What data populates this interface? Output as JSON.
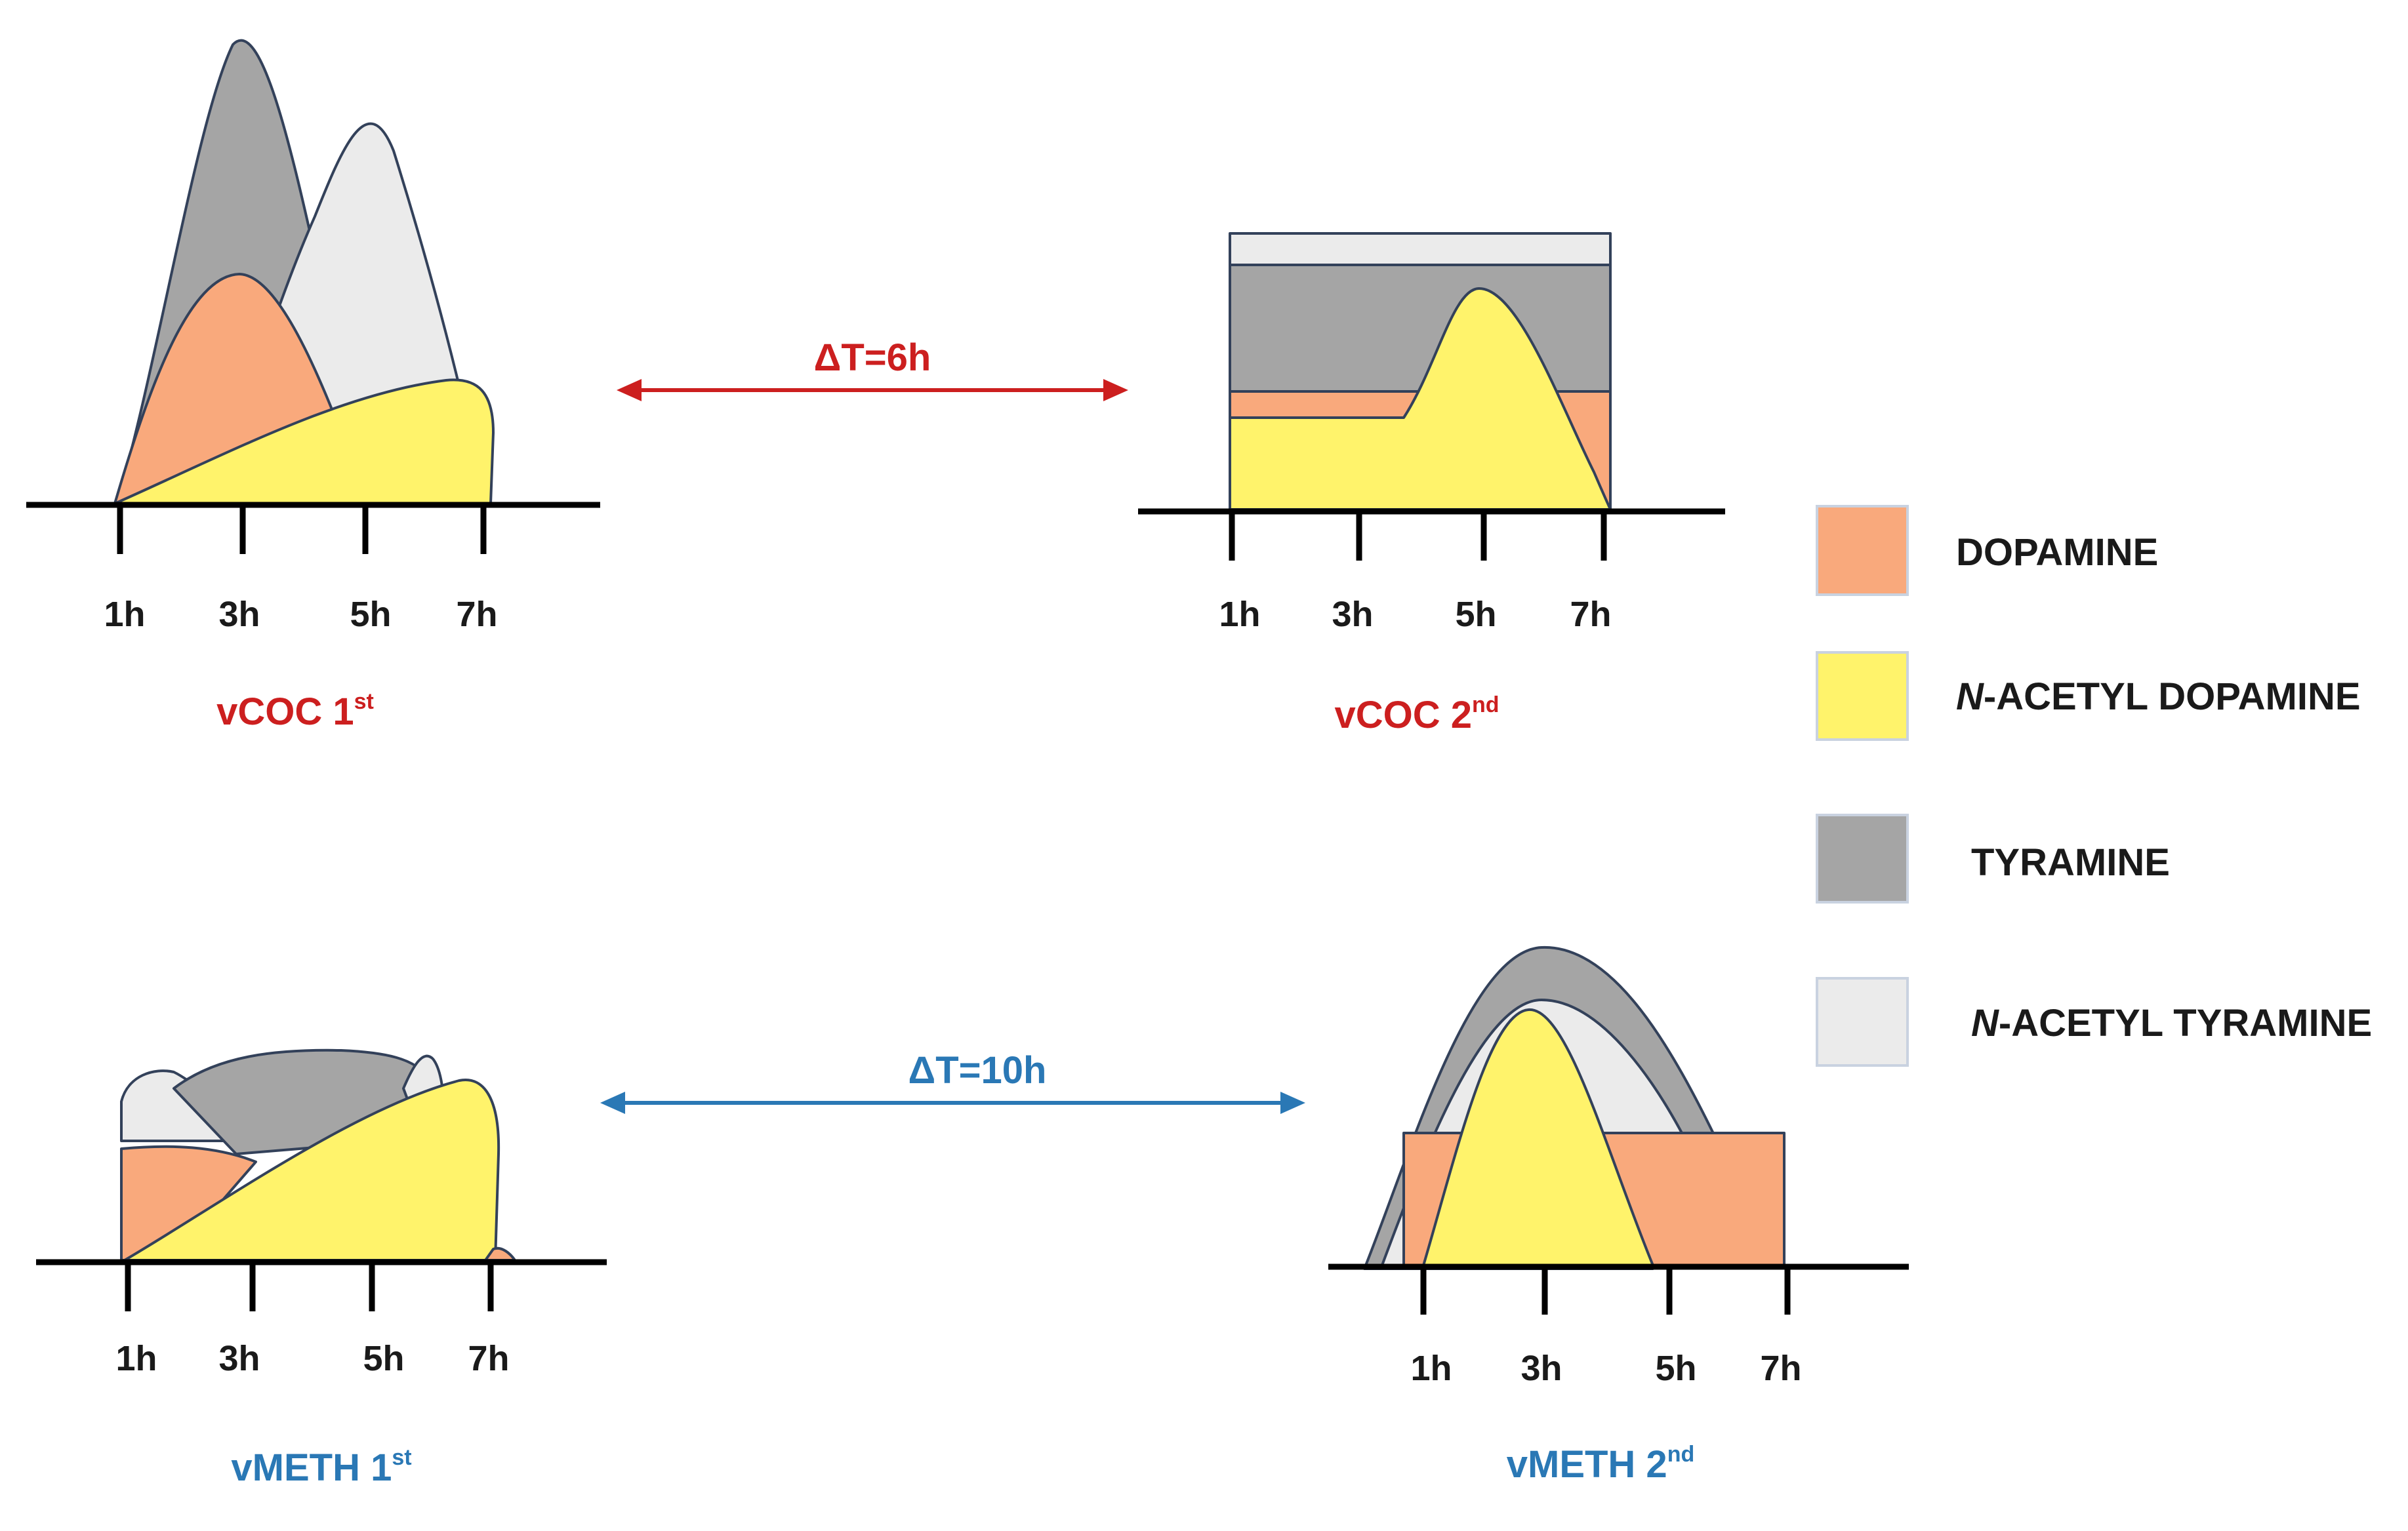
{
  "colors": {
    "dopamine": "#f9a97c",
    "n_acetyl_dopamine": "#fff36b",
    "tyramine": "#a5a5a5",
    "n_acetyl_tyramine": "#ebebeb",
    "coc_accent": "#cc1f1f",
    "meth_accent": "#2a78b5"
  },
  "tick_labels": [
    "1h",
    "3h",
    "5h",
    "7h"
  ],
  "panels": {
    "vcoc_1st": {
      "title": "vCOC 1",
      "suffix": "st"
    },
    "vcoc_2nd": {
      "title": "vCOC 2",
      "suffix": "nd"
    },
    "vmeth_1st": {
      "title": "vMETH 1",
      "suffix": "st"
    },
    "vmeth_2nd": {
      "title": "vMETH 2",
      "suffix": "nd"
    }
  },
  "intervals": {
    "coc": "ΔT=6h",
    "meth": "ΔT=10h"
  },
  "legend": {
    "dopamine": {
      "prefix": "",
      "label": "DOPAMINE"
    },
    "n_acetyl_dopamine": {
      "prefix": "N",
      "label": "-ACETYL DOPAMINE"
    },
    "tyramine": {
      "prefix": "",
      "label": "TYRAMINE"
    },
    "n_acetyl_tyramine": {
      "prefix": "N",
      "label": "-ACETYL TYRAMINE"
    }
  }
}
